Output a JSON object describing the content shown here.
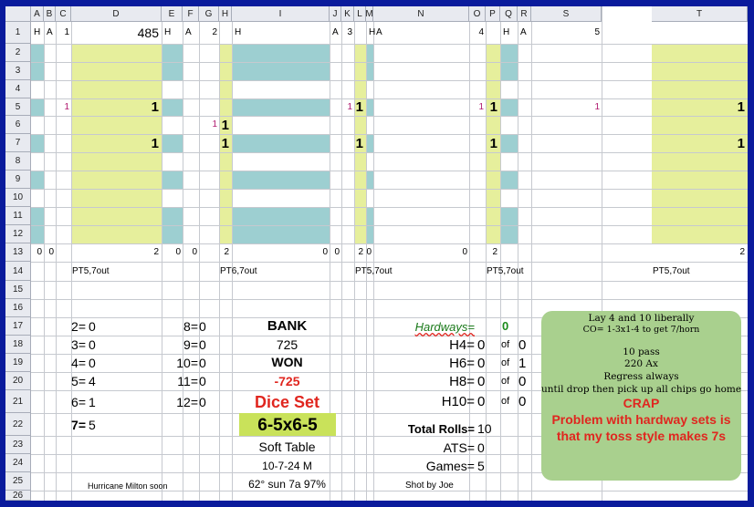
{
  "columns": [
    "A",
    "B",
    "C",
    "D",
    "E",
    "F",
    "G",
    "H",
    "I",
    "J",
    "K",
    "L",
    "M",
    "N",
    "O",
    "P",
    "Q",
    "R",
    "S",
    "T"
  ],
  "rows": [
    "1",
    "2",
    "3",
    "4",
    "5",
    "6",
    "7",
    "8",
    "9",
    "10",
    "11",
    "12",
    "13",
    "14",
    "15",
    "16",
    "17",
    "18",
    "19",
    "20",
    "21",
    "22",
    "23",
    "24",
    "25",
    "26"
  ],
  "colors": {
    "yellow_fill": "#e6ef9c",
    "teal_fill": "#9dcfd1",
    "header_bg": "#e8eaf0",
    "note_bg": "#a9d08e",
    "window_bg": "#0a1b9c",
    "red_text": "#e0261f",
    "green_text": "#1b8a1b",
    "blue_italic": "#1a7a1a",
    "magenta": "#b0186e",
    "dice_set_fill": "#c9e25a"
  },
  "groups": [
    {
      "h": "H",
      "a": "A",
      "num": "1",
      "value": "485",
      "r5_mark": "1",
      "r5_val": "1",
      "r6_mark": "",
      "r6_val": "",
      "r7_val": "1",
      "r13_left": "0",
      "r13_mid": "0",
      "r13_right": "2",
      "r14": "PT5,7out"
    },
    {
      "h": "H",
      "a": "A",
      "num": "2",
      "value": "",
      "r5_mark": "",
      "r5_val": "",
      "r6_mark": "1",
      "r6_val": "1",
      "r7_val": "1",
      "r13_left": "0",
      "r13_mid": "0",
      "r13_right": "2",
      "r14": "PT6,7out"
    },
    {
      "h": "H",
      "a": "A",
      "num": "3",
      "value": "",
      "r5_mark": "1",
      "r5_val": "1",
      "r6_mark": "",
      "r6_val": "",
      "r7_val": "1",
      "r13_left": "0",
      "r13_mid": "0",
      "r13_right": "2",
      "r14": "PT5,7out"
    },
    {
      "h": "H",
      "a": "A",
      "num": "4",
      "value": "",
      "r5_mark": "1",
      "r5_val": "1",
      "r6_mark": "",
      "r6_val": "",
      "r7_val": "1",
      "r13_left": "0",
      "r13_mid": "0",
      "r13_right": "2",
      "r14": "PT5,7out"
    },
    {
      "h": "H",
      "a": "A",
      "num": "5",
      "value": "",
      "r5_mark": "1",
      "r5_val": "1",
      "r6_mark": "",
      "r6_val": "",
      "r7_val": "1",
      "r13_left": "",
      "r13_mid": "",
      "r13_right": "2",
      "r14": "PT5,7out"
    }
  ],
  "roll_counts_left": [
    {
      "label": "2=",
      "value": "0"
    },
    {
      "label": "3=",
      "value": "0"
    },
    {
      "label": "4=",
      "value": "0"
    },
    {
      "label": "5=",
      "value": "4"
    },
    {
      "label": "6=",
      "value": "1"
    },
    {
      "label": "7=",
      "value": "5"
    }
  ],
  "roll_counts_right": [
    {
      "label": "8=",
      "value": "0"
    },
    {
      "label": "9=",
      "value": "0"
    },
    {
      "label": "10=",
      "value": "0"
    },
    {
      "label": "11=",
      "value": "0"
    },
    {
      "label": "12=",
      "value": "0"
    }
  ],
  "center": {
    "bank_label": "BANK",
    "bank_value": "725",
    "won_label": "WON",
    "won_value": "-725",
    "dice_set_label": "Dice Set",
    "dice_set_value": "6-5x6-5",
    "table": "Soft Table",
    "date": "10-7-24 M",
    "weather": "62° sun 7a 97%"
  },
  "hardways": {
    "title": "Hardways=",
    "total": "0",
    "rows": [
      {
        "label": "H4=",
        "value": "0",
        "of": "of",
        "count": "0"
      },
      {
        "label": "H6=",
        "value": "0",
        "of": "of",
        "count": "1"
      },
      {
        "label": "H8=",
        "value": "0",
        "of": "of",
        "count": "0"
      },
      {
        "label": "H10=",
        "value": "0",
        "of": "of",
        "count": "0"
      }
    ],
    "total_rolls_label": "Total Rolls=",
    "total_rolls_value": "10",
    "ats_label": "ATS=",
    "ats_value": "0",
    "games_label": "Games=",
    "games_value": "5"
  },
  "footer": {
    "hurricane": "Hurricane Milton soon",
    "shot_by": "Shot by Joe"
  },
  "note": {
    "line1": "Lay 4 and 10 liberally",
    "line2": "CO= 1-3x1-4 to get 7/horn",
    "line3": "10 pass",
    "line4": "220 Ax",
    "line5": "Regress always",
    "line6": "until drop then pick up all chips go home",
    "crap": "CRAP",
    "problem1": "Problem with hardway sets is",
    "problem2": "that my toss style makes 7s"
  }
}
